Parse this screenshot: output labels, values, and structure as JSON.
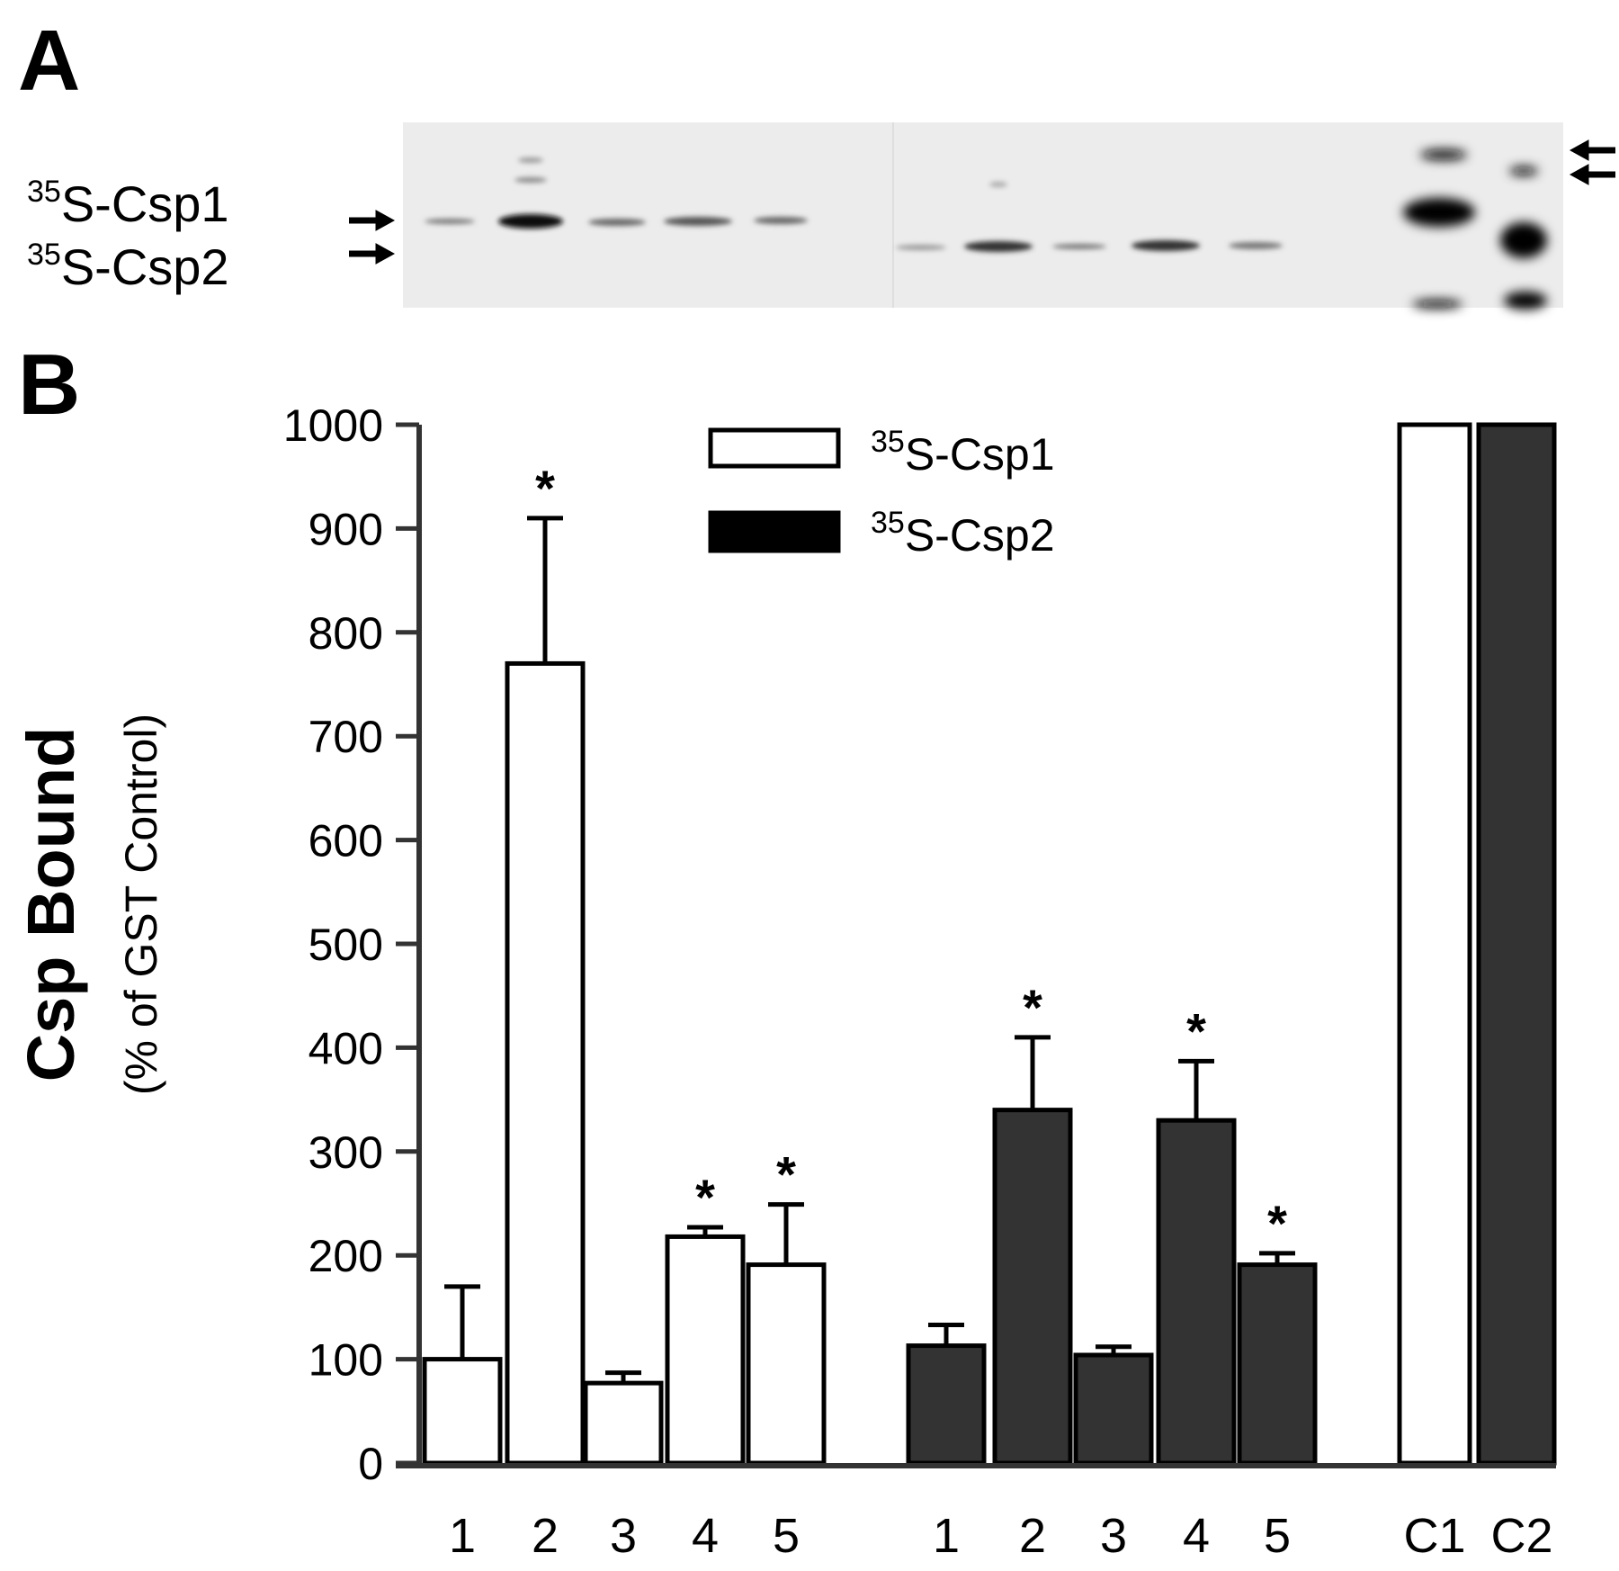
{
  "panels": {
    "a": "A",
    "b": "B"
  },
  "gel": {
    "labels": [
      {
        "sup": "35",
        "text": "S-Csp1"
      },
      {
        "sup": "35",
        "text": "S-Csp2"
      }
    ]
  },
  "colors": {
    "csp1_fill": "#ffffff",
    "csp2_fill": "#333333",
    "stroke": "#000000",
    "gel_bg": "#ececec"
  },
  "chart_data": {
    "type": "bar",
    "ylabel_main": "Csp Bound",
    "ylabel_sub": "(% of GST Control)",
    "ylim": [
      0,
      1000
    ],
    "yticks": [
      0,
      100,
      200,
      300,
      400,
      500,
      600,
      700,
      800,
      900,
      1000
    ],
    "categories": [
      "1",
      "2",
      "3",
      "4",
      "5",
      "1",
      "2",
      "3",
      "4",
      "5",
      "C1",
      "C2"
    ],
    "legend": [
      {
        "sup": "35",
        "text": "S-Csp1",
        "fill": "#ffffff"
      },
      {
        "sup": "35",
        "text": "S-Csp2",
        "fill": "#333333"
      }
    ],
    "legend_position": "top-center",
    "grid": false,
    "series": [
      {
        "name": "35S-Csp1",
        "bars": [
          {
            "category": "1",
            "value": 100,
            "error": 70,
            "significant": false
          },
          {
            "category": "2",
            "value": 770,
            "error": 140,
            "significant": true
          },
          {
            "category": "3",
            "value": 77,
            "error": 10,
            "significant": false
          },
          {
            "category": "4",
            "value": 218,
            "error": 9,
            "significant": true
          },
          {
            "category": "5",
            "value": 191,
            "error": 58,
            "significant": true
          },
          {
            "category": "C1",
            "value": 1000,
            "error": null,
            "significant": false
          }
        ]
      },
      {
        "name": "35S-Csp2",
        "bars": [
          {
            "category": "1",
            "value": 113,
            "error": 20,
            "significant": false
          },
          {
            "category": "2",
            "value": 340,
            "error": 70,
            "significant": true
          },
          {
            "category": "3",
            "value": 104,
            "error": 8,
            "significant": false
          },
          {
            "category": "4",
            "value": 330,
            "error": 57,
            "significant": true
          },
          {
            "category": "5",
            "value": 191,
            "error": 11,
            "significant": true
          },
          {
            "category": "C2",
            "value": 1000,
            "error": null,
            "significant": false
          }
        ]
      }
    ],
    "significance_marker": "*"
  }
}
